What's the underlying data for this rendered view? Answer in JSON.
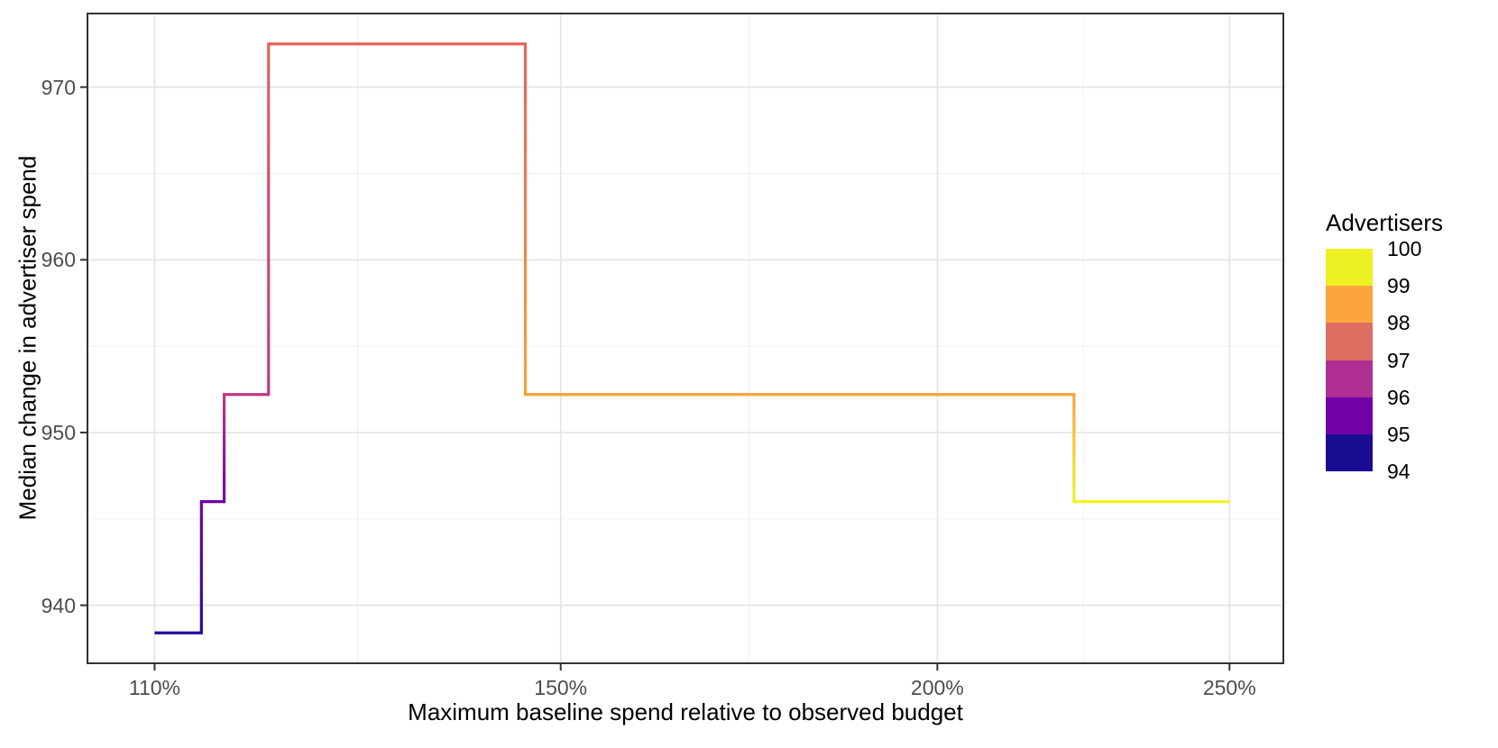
{
  "figure": {
    "x_axis_title": "Maximum baseline spend relative to observed budget",
    "y_axis_title": "Median change in advertiser spend"
  },
  "legend": {
    "title": "Advertisers",
    "labels": [
      "100",
      "99",
      "98",
      "97",
      "96",
      "95",
      "94"
    ],
    "block_colors_top_to_bottom": [
      "#EDF124",
      "#FAA53B",
      "#E06D62",
      "#B02F93",
      "#7000A8",
      "#1A0C92"
    ]
  },
  "chart_data": {
    "type": "line",
    "subtype": "step",
    "title": "",
    "xlabel": "Maximum baseline spend relative to observed budget",
    "ylabel": "Median change in advertiser spend",
    "x_scale": "log10",
    "grid": true,
    "legend_position": "right",
    "legend_title": "Advertisers",
    "xlim": [
      104.5,
      260.5
    ],
    "ylim": [
      936.64,
      974.26
    ],
    "x_ticks": [
      {
        "value": 110,
        "label": "110%"
      },
      {
        "value": 150,
        "label": "150%"
      },
      {
        "value": 200,
        "label": "200%"
      },
      {
        "value": 250,
        "label": "250%"
      }
    ],
    "x_minor": [
      128.45,
      173.2,
      223.6
    ],
    "y_ticks": [
      {
        "value": 940,
        "label": "940"
      },
      {
        "value": 950,
        "label": "950"
      },
      {
        "value": 960,
        "label": "960"
      },
      {
        "value": 970,
        "label": "970"
      }
    ],
    "y_minor": [
      945,
      955,
      965
    ],
    "steps": [
      {
        "x_from": 110,
        "x_to": 114,
        "y": 938.4,
        "advertisers": 94,
        "color": "#26069E"
      },
      {
        "x_from": 114,
        "x_to": 116,
        "y": 946.0,
        "advertisers": 95,
        "color": "#6E00A8"
      },
      {
        "x_from": 116,
        "x_to": 120,
        "y": 952.2,
        "advertisers": 96,
        "color": "#BE3885"
      },
      {
        "x_from": 120,
        "x_to": 146,
        "y": 972.5,
        "advertisers": 97,
        "color": "#E5635C"
      },
      {
        "x_from": 146,
        "x_to": 222,
        "y": 952.2,
        "advertisers": 99,
        "color": "#FBA238"
      },
      {
        "x_from": 222,
        "x_to": 250,
        "y": 946.0,
        "advertisers": 100,
        "color": "#F0F224"
      }
    ],
    "colors": {
      "grid_major": "#E4E4E4",
      "grid_minor": "#F0F0F0",
      "panel_border": "#333333",
      "tick_mark": "#333333",
      "tick_text": "#4D4D4D",
      "axis_title_text": "#000000"
    }
  }
}
